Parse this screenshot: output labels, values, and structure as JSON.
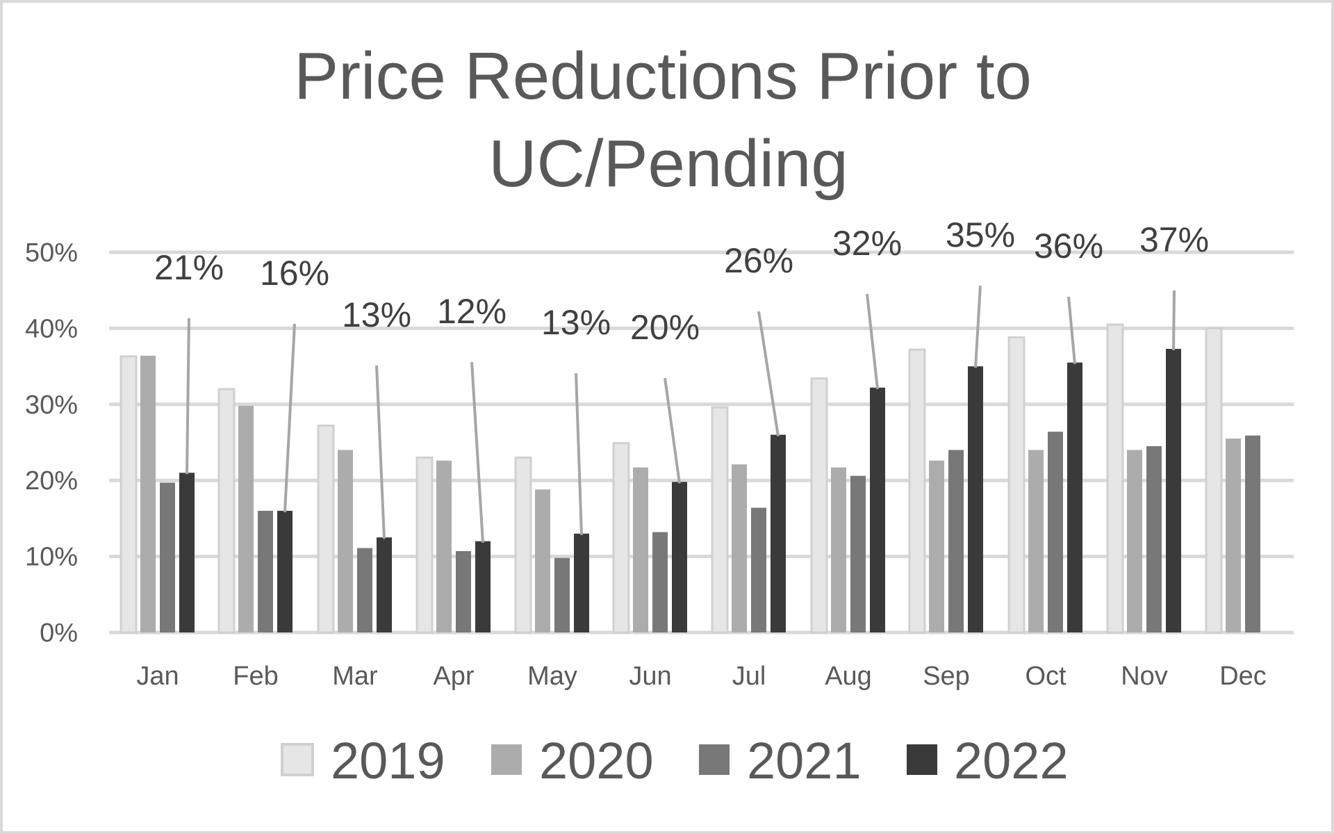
{
  "chart_data": {
    "type": "bar",
    "title_lines": [
      "Price Reductions Prior to",
      "UC/Pending"
    ],
    "xlabel": "",
    "ylabel": "",
    "categories": [
      "Jan",
      "Feb",
      "Mar",
      "Apr",
      "May",
      "Jun",
      "Jul",
      "Aug",
      "Sep",
      "Oct",
      "Nov",
      "Dec"
    ],
    "ylim": [
      0,
      50
    ],
    "yticks": [
      0,
      10,
      20,
      30,
      40,
      50
    ],
    "ytick_labels": [
      "0%",
      "10%",
      "20%",
      "30%",
      "40%",
      "50%"
    ],
    "grid": true,
    "legend_position": "bottom",
    "series": [
      {
        "name": "2019",
        "color": "#e6e6e6",
        "values": [
          36.3,
          32,
          27.2,
          23,
          23,
          24.9,
          29.6,
          33.4,
          37.2,
          38.8,
          40.5,
          40
        ]
      },
      {
        "name": "2020",
        "color": "#acacac",
        "values": [
          36.4,
          29.8,
          24,
          22.6,
          18.8,
          21.7,
          22.1,
          21.7,
          22.6,
          24,
          24,
          25.5
        ]
      },
      {
        "name": "2021",
        "color": "#787878",
        "values": [
          19.7,
          16,
          11.1,
          10.7,
          9.8,
          13.2,
          16.4,
          20.6,
          24,
          26.4,
          24.5,
          25.9
        ]
      },
      {
        "name": "2022",
        "color": "#3a3a3a",
        "values": [
          21,
          16,
          12.5,
          12,
          13,
          19.8,
          26,
          32.2,
          35,
          35.5,
          37.3,
          null
        ]
      }
    ],
    "annotations": [
      {
        "category": "Jan",
        "series": "2022",
        "text": "21%"
      },
      {
        "category": "Feb",
        "series": "2022",
        "text": "16%"
      },
      {
        "category": "Mar",
        "series": "2022",
        "text": "13%"
      },
      {
        "category": "Apr",
        "series": "2022",
        "text": "12%"
      },
      {
        "category": "May",
        "series": "2022",
        "text": "13%"
      },
      {
        "category": "Jun",
        "series": "2022",
        "text": "20%"
      },
      {
        "category": "Jul",
        "series": "2022",
        "text": "26%"
      },
      {
        "category": "Aug",
        "series": "2022",
        "text": "32%"
      },
      {
        "category": "Sep",
        "series": "2022",
        "text": "35%"
      },
      {
        "category": "Oct",
        "series": "2022",
        "text": "36%"
      },
      {
        "category": "Nov",
        "series": "2022",
        "text": "37%"
      }
    ]
  }
}
